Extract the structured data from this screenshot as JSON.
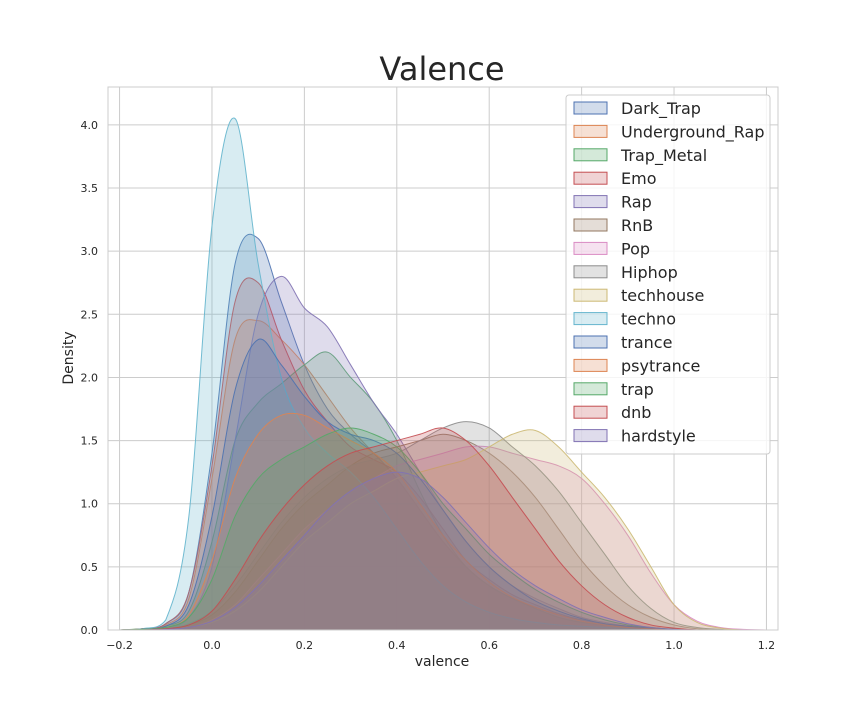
{
  "chart_data": {
    "type": "area",
    "title": "Valence",
    "xlabel": "valence",
    "ylabel": "Density",
    "xlim": [
      -0.225,
      1.225
    ],
    "ylim": [
      0,
      4.3
    ],
    "xticks": [
      -0.2,
      0.0,
      0.2,
      0.4,
      0.6,
      0.8,
      1.0,
      1.2
    ],
    "xtick_labels": [
      "−0.2",
      "0.0",
      "0.2",
      "0.4",
      "0.6",
      "0.8",
      "1.0",
      "1.2"
    ],
    "yticks": [
      0.0,
      0.5,
      1.0,
      1.5,
      2.0,
      2.5,
      3.0,
      3.5,
      4.0
    ],
    "ytick_labels": [
      "0.0",
      "0.5",
      "1.0",
      "1.5",
      "2.0",
      "2.5",
      "3.0",
      "3.5",
      "4.0"
    ],
    "grid": true,
    "legend_position": "top-right",
    "x": [
      -0.2,
      -0.15,
      -0.1,
      -0.05,
      0.0,
      0.05,
      0.1,
      0.15,
      0.2,
      0.25,
      0.3,
      0.35,
      0.4,
      0.45,
      0.5,
      0.55,
      0.6,
      0.65,
      0.7,
      0.75,
      0.8,
      0.85,
      0.9,
      0.95,
      1.0,
      1.05,
      1.1,
      1.15,
      1.2
    ],
    "series": [
      {
        "name": "Dark_Trap",
        "color": "#4c72b0",
        "values": [
          0,
          0.01,
          0.05,
          0.3,
          1.4,
          2.9,
          3.1,
          2.6,
          2.1,
          1.75,
          1.55,
          1.4,
          1.2,
          0.95,
          0.7,
          0.5,
          0.35,
          0.25,
          0.18,
          0.12,
          0.08,
          0.05,
          0.03,
          0.015,
          0.005,
          0,
          0,
          0,
          0
        ]
      },
      {
        "name": "Underground_Rap",
        "color": "#dd8452",
        "values": [
          0,
          0.01,
          0.04,
          0.25,
          1.2,
          2.3,
          2.45,
          2.3,
          2.1,
          1.85,
          1.6,
          1.4,
          1.2,
          0.95,
          0.7,
          0.5,
          0.35,
          0.25,
          0.17,
          0.1,
          0.06,
          0.04,
          0.02,
          0.01,
          0.005,
          0,
          0,
          0,
          0
        ]
      },
      {
        "name": "Trap_Metal",
        "color": "#55a868",
        "values": [
          0,
          0.01,
          0.03,
          0.15,
          0.7,
          1.5,
          1.8,
          1.95,
          2.1,
          2.2,
          2.0,
          1.8,
          1.5,
          1.1,
          0.75,
          0.5,
          0.35,
          0.25,
          0.17,
          0.1,
          0.06,
          0.04,
          0.02,
          0.01,
          0.005,
          0,
          0,
          0,
          0
        ]
      },
      {
        "name": "Emo",
        "color": "#c44e52",
        "values": [
          0,
          0.01,
          0.05,
          0.3,
          1.3,
          2.6,
          2.75,
          2.3,
          1.9,
          1.65,
          1.45,
          1.35,
          1.25,
          1.05,
          0.8,
          0.55,
          0.4,
          0.28,
          0.2,
          0.13,
          0.08,
          0.05,
          0.03,
          0.015,
          0.005,
          0,
          0,
          0,
          0
        ]
      },
      {
        "name": "Rap",
        "color": "#8172b3",
        "values": [
          0,
          0.005,
          0.02,
          0.1,
          0.5,
          1.5,
          2.5,
          2.8,
          2.55,
          2.4,
          2.1,
          1.8,
          1.55,
          1.25,
          0.95,
          0.7,
          0.5,
          0.35,
          0.25,
          0.17,
          0.1,
          0.06,
          0.03,
          0.015,
          0.005,
          0,
          0,
          0,
          0
        ]
      },
      {
        "name": "RnB",
        "color": "#937860",
        "values": [
          0,
          0.005,
          0.01,
          0.04,
          0.12,
          0.3,
          0.55,
          0.8,
          1.0,
          1.15,
          1.3,
          1.4,
          1.45,
          1.5,
          1.55,
          1.5,
          1.4,
          1.25,
          1.05,
          0.8,
          0.55,
          0.35,
          0.2,
          0.1,
          0.04,
          0.01,
          0,
          0,
          0
        ]
      },
      {
        "name": "Pop",
        "color": "#da8bc3",
        "values": [
          0,
          0,
          0.005,
          0.02,
          0.08,
          0.2,
          0.4,
          0.6,
          0.8,
          0.95,
          1.1,
          1.2,
          1.3,
          1.35,
          1.4,
          1.45,
          1.45,
          1.4,
          1.35,
          1.3,
          1.2,
          1.0,
          0.75,
          0.45,
          0.2,
          0.07,
          0.02,
          0.005,
          0
        ]
      },
      {
        "name": "Hiphop",
        "color": "#8c8c8c",
        "values": [
          0,
          0.005,
          0.01,
          0.05,
          0.15,
          0.35,
          0.6,
          0.85,
          1.05,
          1.2,
          1.3,
          1.35,
          1.4,
          1.5,
          1.6,
          1.65,
          1.6,
          1.45,
          1.3,
          1.1,
          0.85,
          0.6,
          0.35,
          0.17,
          0.06,
          0.02,
          0.005,
          0,
          0
        ]
      },
      {
        "name": "techhouse",
        "color": "#ccb974",
        "values": [
          0,
          0,
          0.005,
          0.02,
          0.06,
          0.15,
          0.3,
          0.5,
          0.7,
          0.85,
          1.0,
          1.1,
          1.2,
          1.25,
          1.3,
          1.35,
          1.45,
          1.55,
          1.58,
          1.45,
          1.25,
          1.05,
          0.8,
          0.5,
          0.2,
          0.06,
          0.015,
          0,
          0
        ]
      },
      {
        "name": "techno",
        "color": "#64b5cd",
        "values": [
          0,
          0.01,
          0.08,
          0.9,
          3.2,
          4.05,
          2.9,
          2.0,
          1.6,
          1.4,
          1.25,
          1.05,
          0.8,
          0.55,
          0.35,
          0.22,
          0.14,
          0.09,
          0.06,
          0.04,
          0.03,
          0.02,
          0.01,
          0.005,
          0,
          0,
          0,
          0,
          0
        ]
      },
      {
        "name": "trance",
        "color": "#4c72b0",
        "values": [
          0,
          0.005,
          0.03,
          0.2,
          0.9,
          1.9,
          2.3,
          2.1,
          1.85,
          1.65,
          1.55,
          1.5,
          1.4,
          1.2,
          0.95,
          0.7,
          0.5,
          0.35,
          0.23,
          0.15,
          0.09,
          0.05,
          0.03,
          0.015,
          0.005,
          0,
          0,
          0,
          0
        ]
      },
      {
        "name": "psytrance",
        "color": "#dd8452",
        "values": [
          0,
          0.005,
          0.02,
          0.12,
          0.55,
          1.2,
          1.55,
          1.7,
          1.7,
          1.6,
          1.5,
          1.4,
          1.25,
          1.0,
          0.75,
          0.55,
          0.38,
          0.26,
          0.18,
          0.12,
          0.07,
          0.04,
          0.02,
          0.01,
          0.005,
          0,
          0,
          0,
          0
        ]
      },
      {
        "name": "trap",
        "color": "#55a868",
        "values": [
          0,
          0.005,
          0.02,
          0.1,
          0.4,
          0.9,
          1.2,
          1.35,
          1.45,
          1.55,
          1.6,
          1.55,
          1.45,
          1.25,
          1.0,
          0.8,
          0.6,
          0.45,
          0.32,
          0.22,
          0.14,
          0.08,
          0.04,
          0.02,
          0.005,
          0,
          0,
          0,
          0
        ]
      },
      {
        "name": "dnb",
        "color": "#c44e52",
        "values": [
          0,
          0,
          0.01,
          0.04,
          0.15,
          0.4,
          0.7,
          0.95,
          1.15,
          1.3,
          1.4,
          1.45,
          1.5,
          1.55,
          1.6,
          1.5,
          1.3,
          1.05,
          0.8,
          0.55,
          0.35,
          0.2,
          0.1,
          0.04,
          0.015,
          0,
          0,
          0,
          0
        ]
      },
      {
        "name": "hardstyle",
        "color": "#8172b3",
        "values": [
          0,
          0,
          0.005,
          0.02,
          0.07,
          0.18,
          0.35,
          0.55,
          0.75,
          0.95,
          1.1,
          1.2,
          1.25,
          1.2,
          1.05,
          0.85,
          0.65,
          0.48,
          0.35,
          0.25,
          0.16,
          0.1,
          0.05,
          0.02,
          0.005,
          0,
          0,
          0,
          0
        ]
      }
    ]
  }
}
